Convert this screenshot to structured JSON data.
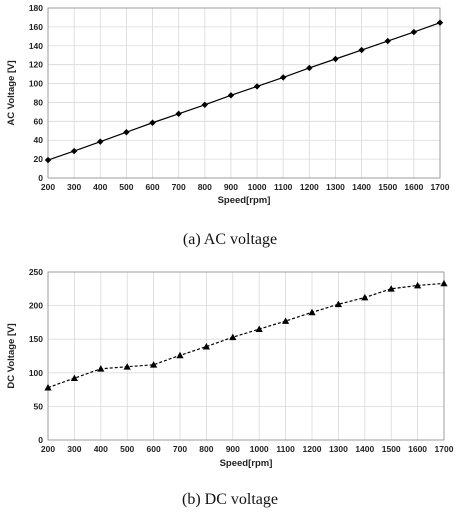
{
  "chart_data": [
    {
      "type": "line",
      "caption": "(a)  AC  voltage",
      "xlabel": "Speed[rpm]",
      "ylabel": "AC Voltage [V]",
      "xlim": [
        200,
        1700
      ],
      "ylim": [
        0,
        180
      ],
      "x_ticks": [
        200,
        300,
        400,
        500,
        600,
        700,
        800,
        900,
        1000,
        1100,
        1200,
        1300,
        1400,
        1500,
        1600,
        1700
      ],
      "y_ticks": [
        0,
        20,
        40,
        60,
        80,
        100,
        120,
        140,
        160,
        180
      ],
      "grid": true,
      "marker": "diamond",
      "line_style": "solid",
      "color": "#000000",
      "x": [
        200,
        300,
        400,
        500,
        600,
        700,
        800,
        900,
        1000,
        1100,
        1200,
        1300,
        1400,
        1500,
        1600,
        1700
      ],
      "y": [
        19,
        28.5,
        38.5,
        48.5,
        58.5,
        68,
        77.5,
        87.5,
        97,
        106.5,
        116.5,
        126,
        135.5,
        145,
        154.5,
        164.5
      ]
    },
    {
      "type": "line",
      "caption": "(b)  DC  voltage",
      "xlabel": "Speed[rpm]",
      "ylabel": "DC Voltage [V]",
      "xlim": [
        200,
        1700
      ],
      "ylim": [
        0,
        250
      ],
      "x_ticks": [
        200,
        300,
        400,
        500,
        600,
        700,
        800,
        900,
        1000,
        1100,
        1200,
        1300,
        1400,
        1500,
        1600,
        1700
      ],
      "y_ticks": [
        0,
        50,
        100,
        150,
        200,
        250
      ],
      "grid": true,
      "marker": "triangle",
      "line_style": "dashed",
      "color": "#000000",
      "x": [
        200,
        300,
        400,
        500,
        600,
        700,
        800,
        900,
        1000,
        1100,
        1200,
        1300,
        1400,
        1500,
        1600,
        1700
      ],
      "y": [
        78,
        92,
        106,
        109,
        112,
        126,
        139,
        153,
        165,
        177,
        190,
        202,
        212,
        225,
        230,
        233
      ]
    }
  ]
}
